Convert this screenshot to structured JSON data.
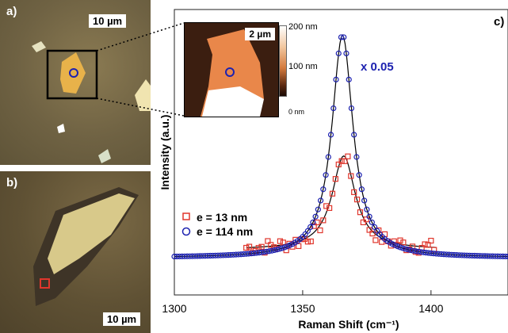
{
  "panel_a": {
    "label": "a)",
    "scale": "10 µm"
  },
  "panel_b": {
    "label": "b)",
    "scale": "10 µm"
  },
  "panel_c": {
    "label": "c)"
  },
  "inset": {
    "scale": "2 µm",
    "colorbar": [
      "200 nm",
      "100 nm",
      "0 nm"
    ]
  },
  "annotation_scale": "x 0.05",
  "colors": {
    "red": "#e0362c",
    "blue": "#1d22b0",
    "fit": "#000000"
  },
  "chart_data": {
    "type": "scatter",
    "xlabel": "Raman Shift (cm⁻¹)",
    "ylabel": "Intensity (a.u.)",
    "xlim": [
      1300,
      1430
    ],
    "ylim": [
      0,
      1.05
    ],
    "xticks": [
      1300,
      1350,
      1400
    ],
    "grid": false,
    "legend_position": "middle-left",
    "series": [
      {
        "name": "e = 13 nm",
        "marker": "square",
        "color": "#e0362c",
        "center": 1366,
        "width": 5.5,
        "amplitude": 0.42,
        "baseline": 0.04,
        "xrange": [
          1328,
          1402
        ],
        "noise": 0.04
      },
      {
        "name": "e = 114 nm",
        "marker": "circle",
        "color": "#1d22b0",
        "center": 1365.5,
        "width": 5,
        "amplitude": 1.0,
        "baseline": 0.003,
        "xrange": [
          1300,
          1430
        ],
        "noise": 0.0
      }
    ]
  }
}
